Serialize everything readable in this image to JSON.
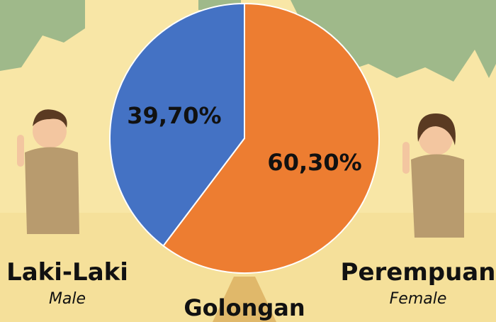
{
  "chart_data": {
    "type": "pie",
    "title": "Golongan",
    "categories": [
      "Laki-Laki",
      "Perempuan"
    ],
    "category_translations": [
      "Male",
      "Female"
    ],
    "values": [
      39.7,
      60.3
    ],
    "value_labels": [
      "39,70%",
      "60,30%"
    ],
    "colors": [
      "#4472c4",
      "#ed7d31"
    ]
  }
}
